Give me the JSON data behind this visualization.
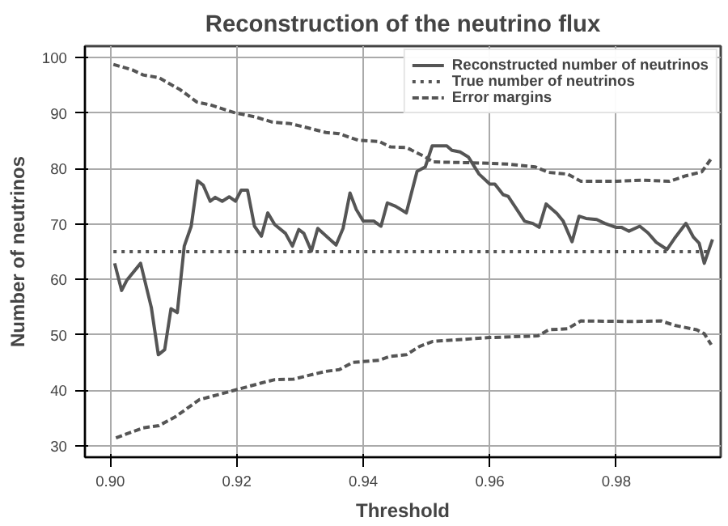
{
  "chart_data": {
    "type": "line",
    "title": "Reconstruction of the neutrino flux",
    "xlabel": "Threshold",
    "ylabel": "Number of neutrinos",
    "xlim": [
      0.896,
      0.9965
    ],
    "ylim": [
      27.9,
      102.1
    ],
    "xticks": [
      {
        "value": 0.9,
        "label": "0.90"
      },
      {
        "value": 0.92,
        "label": "0.92"
      },
      {
        "value": 0.94,
        "label": "0.94"
      },
      {
        "value": 0.96,
        "label": "0.96"
      },
      {
        "value": 0.98,
        "label": "0.98"
      }
    ],
    "yticks": [
      30,
      40,
      50,
      60,
      70,
      80,
      90,
      100
    ],
    "grid": true,
    "legend": "top right",
    "marker": "none",
    "series": [
      {
        "name": "Reconstructed number of neutrinos",
        "color": "#555555",
        "line_style": "solid",
        "x": [
          0.9007,
          0.9018,
          0.9026,
          0.9048,
          0.9065,
          0.9076,
          0.9086,
          0.9096,
          0.9106,
          0.9117,
          0.9128,
          0.9138,
          0.9147,
          0.9158,
          0.9166,
          0.9177,
          0.9188,
          0.9198,
          0.9207,
          0.9217,
          0.9228,
          0.9239,
          0.9249,
          0.926,
          0.9277,
          0.9288,
          0.9298,
          0.9306,
          0.9318,
          0.9328,
          0.9357,
          0.9368,
          0.9379,
          0.9389,
          0.94,
          0.9417,
          0.9428,
          0.9438,
          0.9451,
          0.9468,
          0.9485,
          0.9498,
          0.9509,
          0.9532,
          0.954,
          0.9553,
          0.9566,
          0.9583,
          0.96,
          0.9608,
          0.9621,
          0.9629,
          0.9655,
          0.9668,
          0.9678,
          0.9689,
          0.9706,
          0.9716,
          0.973,
          0.9741,
          0.9752,
          0.9769,
          0.9782,
          0.9799,
          0.9808,
          0.982,
          0.9837,
          0.985,
          0.9863,
          0.988,
          0.9892,
          0.991,
          0.9922,
          0.9931,
          0.9939,
          0.9952
        ],
        "values": [
          62.9,
          58.0,
          59.8,
          62.9,
          54.9,
          46.4,
          47.3,
          54.7,
          54.0,
          66.0,
          69.6,
          77.8,
          77.0,
          74.1,
          74.8,
          74.1,
          74.9,
          74.1,
          76.1,
          76.1,
          69.6,
          67.8,
          72.0,
          69.9,
          68.3,
          66.0,
          69.0,
          68.3,
          65.1,
          69.2,
          66.2,
          69.2,
          75.6,
          72.6,
          70.5,
          70.5,
          69.6,
          73.8,
          73.2,
          72.0,
          79.5,
          80.3,
          84.1,
          84.1,
          83.3,
          83.0,
          82.1,
          79.0,
          77.2,
          77.2,
          75.3,
          75.0,
          70.5,
          70.1,
          69.4,
          73.6,
          71.9,
          70.5,
          66.8,
          71.4,
          71.0,
          70.8,
          70.1,
          69.4,
          69.4,
          68.7,
          69.6,
          68.4,
          66.7,
          65.4,
          67.4,
          70.1,
          67.6,
          66.5,
          62.9,
          67.2
        ]
      },
      {
        "name": "True number of neutrinos",
        "color": "#555555",
        "line_style": "dotted",
        "x": [
          0.9005,
          0.995
        ],
        "values": [
          65,
          65
        ]
      },
      {
        "name": "Error margins",
        "color": "#555555",
        "line_style": "dashed",
        "x": [
          0.9005,
          0.9035,
          0.9052,
          0.9077,
          0.9111,
          0.9137,
          0.9158,
          0.9196,
          0.923,
          0.9256,
          0.9285,
          0.9307,
          0.9341,
          0.9362,
          0.9392,
          0.9425,
          0.9443,
          0.9468,
          0.9498,
          0.951,
          0.9587,
          0.9629,
          0.9672,
          0.9693,
          0.9723,
          0.9744,
          0.9799,
          0.9842,
          0.9884,
          0.991,
          0.9935,
          0.995
        ],
        "values": [
          98.8,
          97.8,
          96.9,
          96.4,
          94.2,
          92.0,
          91.5,
          90.1,
          89.3,
          88.4,
          88.1,
          87.5,
          86.5,
          86.3,
          85.1,
          84.9,
          83.9,
          83.8,
          82.1,
          81.2,
          81.0,
          80.8,
          80.3,
          79.3,
          79.0,
          77.7,
          77.7,
          77.9,
          77.7,
          78.7,
          79.4,
          81.8
        ]
      },
      {
        "color": "#555555",
        "line_style": "dashed",
        "x": [
          0.9009,
          0.9052,
          0.9077,
          0.9103,
          0.9141,
          0.9171,
          0.92,
          0.9239,
          0.926,
          0.929,
          0.9315,
          0.9341,
          0.9362,
          0.9383,
          0.9425,
          0.9442,
          0.9468,
          0.9489,
          0.951,
          0.96,
          0.9676,
          0.9693,
          0.9723,
          0.9744,
          0.9825,
          0.9871,
          0.9892,
          0.9927,
          0.9939,
          0.995
        ],
        "values": [
          31.4,
          33.2,
          33.6,
          35.2,
          38.3,
          39.2,
          40.1,
          41.3,
          41.9,
          42.0,
          42.7,
          43.4,
          43.7,
          45.0,
          45.4,
          46.1,
          46.4,
          47.9,
          48.8,
          49.5,
          49.8,
          50.9,
          51.1,
          52.5,
          52.4,
          52.5,
          51.7,
          50.9,
          50.2,
          48.2
        ]
      }
    ]
  }
}
